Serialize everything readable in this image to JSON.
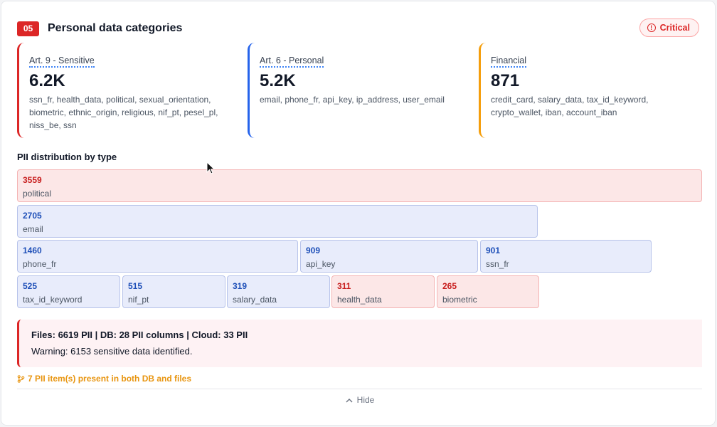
{
  "header": {
    "number": "05",
    "title": "Personal data categories",
    "severity": "Critical"
  },
  "categories": [
    {
      "label": "Art. 9 - Sensitive",
      "value": "6.2K",
      "types": "ssn_fr, health_data, political, sexual_orientation, biometric, ethnic_origin, religious, nif_pt, pesel_pl, niss_be, ssn",
      "color": "#dc2626"
    },
    {
      "label": "Art. 6 - Personal",
      "value": "5.2K",
      "types": "email, phone_fr, api_key, ip_address, user_email",
      "color": "#2563eb"
    },
    {
      "label": "Financial",
      "value": "871",
      "types": "credit_card, salary_data, tax_id_keyword, crypto_wallet, iban, account_iban",
      "color": "#f59e0b"
    }
  ],
  "distribution": {
    "title": "PII distribution by type",
    "items": [
      {
        "count": "3559",
        "name": "political",
        "severity": "sensitive"
      },
      {
        "count": "2705",
        "name": "email",
        "severity": "personal"
      },
      {
        "count": "1460",
        "name": "phone_fr",
        "severity": "personal"
      },
      {
        "count": "909",
        "name": "api_key",
        "severity": "personal"
      },
      {
        "count": "901",
        "name": "ssn_fr",
        "severity": "personal"
      },
      {
        "count": "525",
        "name": "tax_id_keyword",
        "severity": "personal"
      },
      {
        "count": "515",
        "name": "nif_pt",
        "severity": "personal"
      },
      {
        "count": "319",
        "name": "salary_data",
        "severity": "personal"
      },
      {
        "count": "311",
        "name": "health_data",
        "severity": "sensitive"
      },
      {
        "count": "265",
        "name": "biometric",
        "severity": "sensitive"
      }
    ]
  },
  "summary": {
    "line1": "Files: 6619 PII | DB: 28 PII columns | Cloud: 33 PII",
    "line2": "Warning: 6153 sensitive data identified."
  },
  "cross_ref": {
    "icon": "branch-icon",
    "text": "7 PII item(s) present in both DB and files"
  },
  "footer": {
    "hide_label": "Hide"
  }
}
